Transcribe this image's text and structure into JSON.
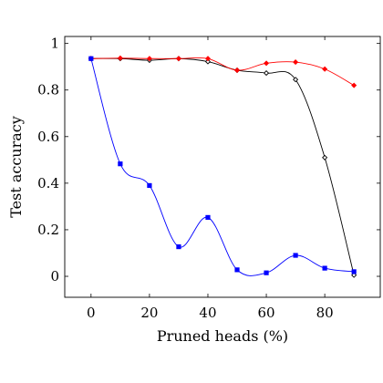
{
  "chart_data": {
    "type": "line",
    "xlabel": "Pruned heads (%)",
    "ylabel": "Test accuracy",
    "xlim": [
      -9,
      99
    ],
    "ylim": [
      -0.09,
      1.03
    ],
    "xticks": [
      0,
      20,
      40,
      60,
      80
    ],
    "yticks": [
      0,
      0.2,
      0.4,
      0.6,
      0.8,
      1
    ],
    "xtick_labels": [
      "0",
      "20",
      "40",
      "60",
      "80"
    ],
    "ytick_labels": [
      "0",
      "0.2",
      "0.4",
      "0.6",
      "0.8",
      "1"
    ],
    "grid": false,
    "legend": "none",
    "x": [
      0,
      10,
      20,
      30,
      40,
      50,
      60,
      70,
      80,
      90
    ],
    "series": [
      {
        "color": "#000000",
        "marker": "diamond-open",
        "values": [
          0.935,
          0.935,
          0.928,
          0.935,
          0.922,
          0.885,
          0.873,
          0.845,
          0.51,
          0.005
        ]
      },
      {
        "color": "#ff0000",
        "marker": "diamond-filled",
        "values": [
          0.935,
          0.937,
          0.935,
          0.935,
          0.935,
          0.885,
          0.915,
          0.92,
          0.89,
          0.82
        ]
      },
      {
        "color": "#0000ff",
        "marker": "square",
        "values": [
          0.935,
          0.483,
          0.39,
          0.127,
          0.253,
          0.028,
          0.015,
          0.09,
          0.035,
          0.02
        ]
      }
    ]
  }
}
